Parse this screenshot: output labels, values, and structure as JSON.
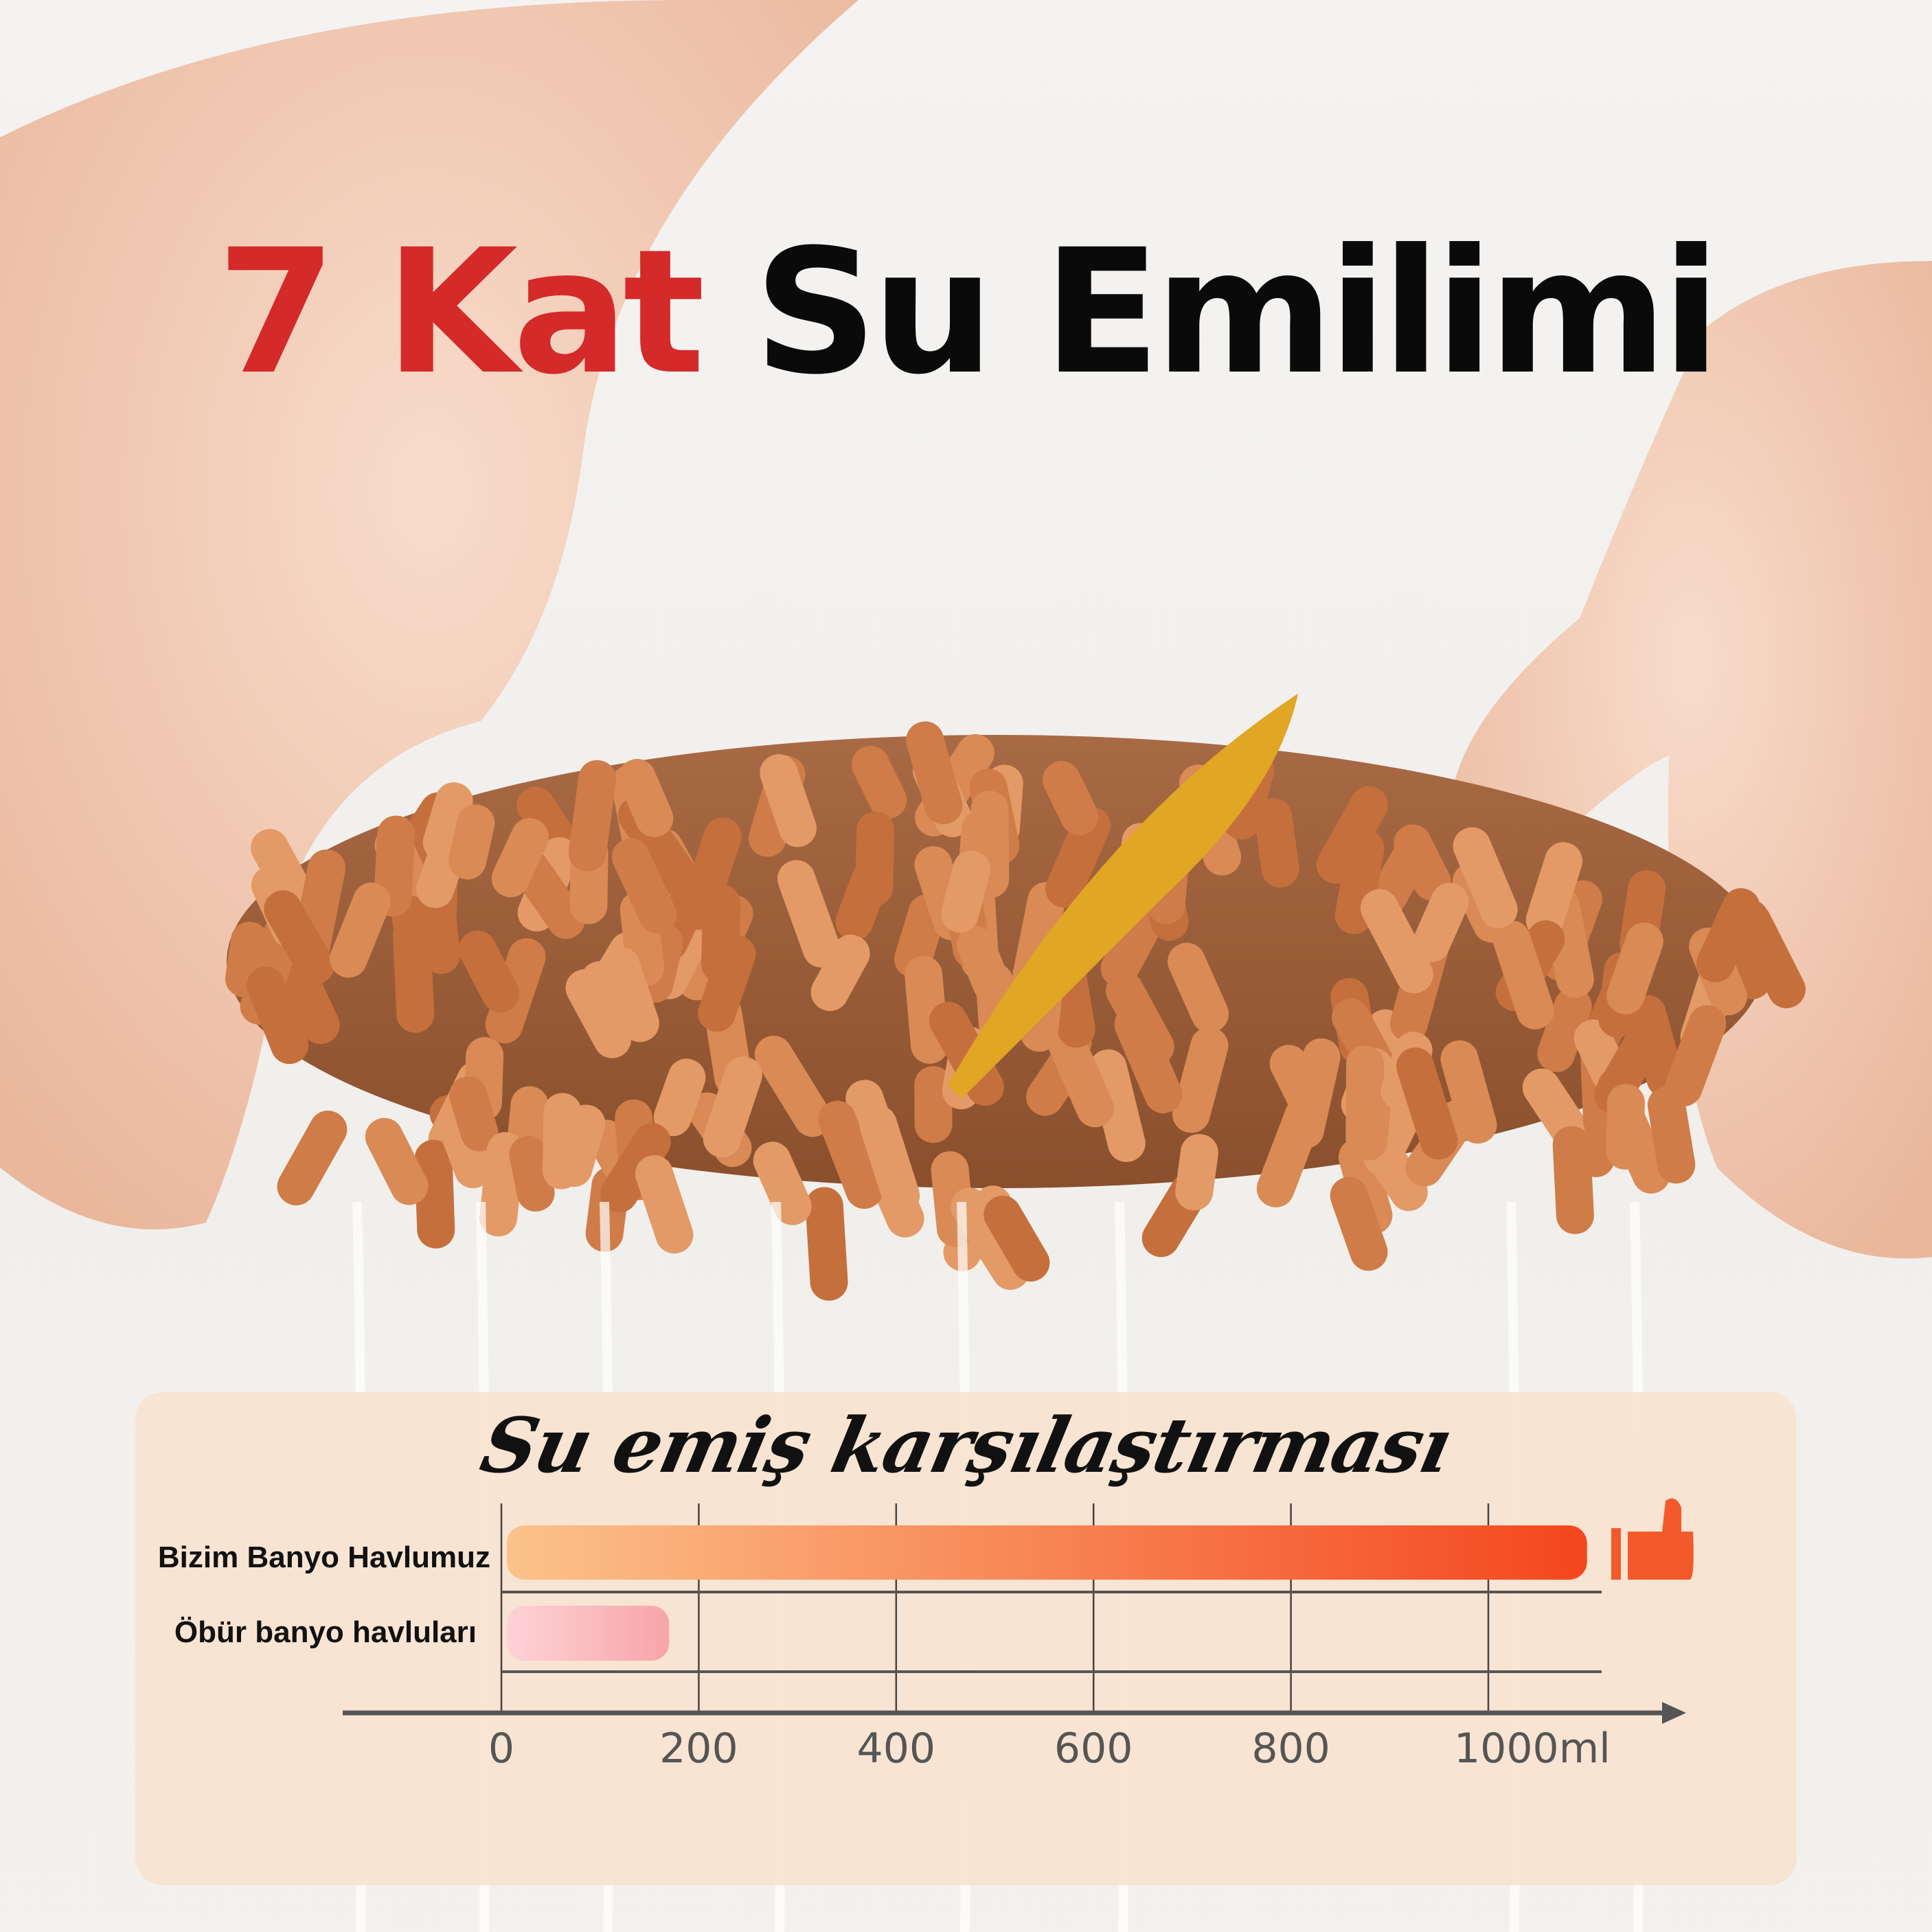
{
  "headline": {
    "highlight": "7 Kat",
    "rest": "Su Emilimi",
    "highlight_color": "#d42a2a"
  },
  "chart_data": {
    "type": "bar",
    "orientation": "horizontal",
    "title": "Su emiş karşılaştırması",
    "categories": [
      "Bizim Banyo Havlumuz",
      "Öbür banyo havluları"
    ],
    "values": [
      1100,
      170
    ],
    "xlim": [
      0,
      1100
    ],
    "x_ticks": [
      "0",
      "200",
      "400",
      "600",
      "800",
      "1000ml"
    ],
    "x_tick_values": [
      0,
      200,
      400,
      600,
      800,
      1000
    ],
    "grid": true,
    "bar_colors": [
      [
        "#fbc28a",
        "#f4461e"
      ],
      [
        "#fdd3d6",
        "#f7a5a9"
      ]
    ],
    "annotation_icon": "thumbs-up-icon"
  }
}
